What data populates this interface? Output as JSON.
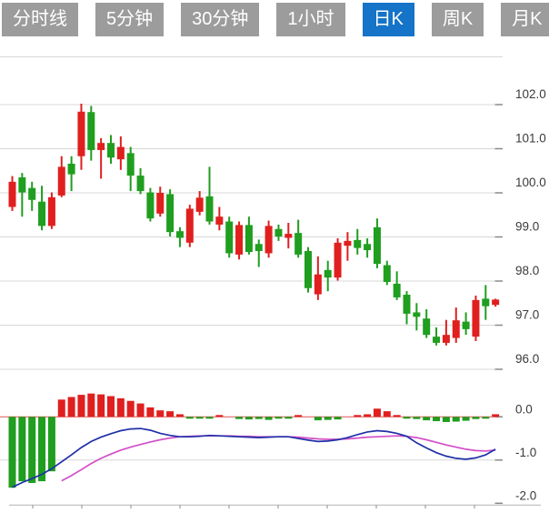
{
  "toolbar": {
    "tabs": [
      {
        "label": "分时线",
        "active": false
      },
      {
        "label": "5分钟",
        "active": false
      },
      {
        "label": "30分钟",
        "active": false
      },
      {
        "label": "1小时",
        "active": false
      },
      {
        "label": "日K",
        "active": true
      },
      {
        "label": "周K",
        "active": false
      },
      {
        "label": "月K",
        "active": false
      }
    ]
  },
  "colors": {
    "up": "#e01f1f",
    "down": "#1f9e1f",
    "tab_bg": "#9c9c9c",
    "tab_active_bg": "#1573c8",
    "tab_text": "#ffffff",
    "grid": "#d8d8d8",
    "axis_line": "#b4b4b4",
    "axis_text": "#3a3a3a",
    "tick": "#8a8a8a",
    "dif_line": "#2030a8",
    "dea_line": "#d24fc8",
    "zero_line": "#dd5555",
    "background": "#ffffff"
  },
  "chart_data": {
    "type": "candlestick",
    "title": "",
    "legend": [],
    "grid": "horizontal-only",
    "price_axis": {
      "side": "right",
      "tick_labels": [
        "102.0",
        "101.0",
        "100.0",
        "99.0",
        "98.0",
        "97.0",
        "96.0"
      ],
      "tick_values": [
        102,
        101,
        100,
        99,
        98,
        97,
        96
      ]
    },
    "macd_axis": {
      "side": "right",
      "tick_labels": [
        "0.0",
        "-1.0",
        "-2.0"
      ],
      "tick_values": [
        0,
        -1,
        -2
      ]
    },
    "candles": [
      [
        99.68,
        100.38,
        99.59,
        100.25
      ],
      [
        100.35,
        100.45,
        99.46,
        100.01
      ],
      [
        100.11,
        100.25,
        99.59,
        99.84
      ],
      [
        99.8,
        100.16,
        99.15,
        99.25
      ],
      [
        99.25,
        100.01,
        99.18,
        99.9
      ],
      [
        99.94,
        100.83,
        99.9,
        100.59
      ],
      [
        100.66,
        100.83,
        100.04,
        100.42
      ],
      [
        100.83,
        102.02,
        100.52,
        101.84
      ],
      [
        101.83,
        101.97,
        100.73,
        100.97
      ],
      [
        100.97,
        101.24,
        100.32,
        101.13
      ],
      [
        101.13,
        101.31,
        100.66,
        100.8
      ],
      [
        100.76,
        101.28,
        100.52,
        101.04
      ],
      [
        100.9,
        101.04,
        100.04,
        100.39
      ],
      [
        100.39,
        100.56,
        99.97,
        100.04
      ],
      [
        100.01,
        100.11,
        99.35,
        99.42
      ],
      [
        99.53,
        100.14,
        99.46,
        100.0
      ],
      [
        99.97,
        100.08,
        99.01,
        99.11
      ],
      [
        99.13,
        99.22,
        98.77,
        98.98
      ],
      [
        98.87,
        99.73,
        98.77,
        99.64
      ],
      [
        99.57,
        100.04,
        99.49,
        99.89
      ],
      [
        99.92,
        100.59,
        99.28,
        99.35
      ],
      [
        99.28,
        99.68,
        99.15,
        99.46
      ],
      [
        99.35,
        99.46,
        98.53,
        98.63
      ],
      [
        98.6,
        99.35,
        98.49,
        99.27
      ],
      [
        99.27,
        99.46,
        98.6,
        98.66
      ],
      [
        98.84,
        98.94,
        98.32,
        98.68
      ],
      [
        98.63,
        99.37,
        98.53,
        99.25
      ],
      [
        99.18,
        99.28,
        98.91,
        99.01
      ],
      [
        98.98,
        99.32,
        98.74,
        99.07
      ],
      [
        99.09,
        99.39,
        98.53,
        98.6
      ],
      [
        98.68,
        98.77,
        97.74,
        97.84
      ],
      [
        97.7,
        98.56,
        97.57,
        98.15
      ],
      [
        98.25,
        98.46,
        97.77,
        98.08
      ],
      [
        98.08,
        98.97,
        98.01,
        98.87
      ],
      [
        98.8,
        99.11,
        98.46,
        98.91
      ],
      [
        98.93,
        99.18,
        98.6,
        98.75
      ],
      [
        98.84,
        98.97,
        98.53,
        98.7
      ],
      [
        99.22,
        99.42,
        98.29,
        98.39
      ],
      [
        98.36,
        98.46,
        97.91,
        97.98
      ],
      [
        97.94,
        98.22,
        97.57,
        97.63
      ],
      [
        97.69,
        97.77,
        97.02,
        97.26
      ],
      [
        97.29,
        97.5,
        96.88,
        97.19
      ],
      [
        97.15,
        97.36,
        96.71,
        96.78
      ],
      [
        96.74,
        96.95,
        96.54,
        96.6
      ],
      [
        96.6,
        97.12,
        96.54,
        96.78
      ],
      [
        96.71,
        97.4,
        96.6,
        97.11
      ],
      [
        97.08,
        97.29,
        96.78,
        96.91
      ],
      [
        96.74,
        97.67,
        96.64,
        97.57
      ],
      [
        97.6,
        97.91,
        97.12,
        97.43
      ],
      [
        97.46,
        97.6,
        97.42,
        97.58
      ]
    ],
    "macd": {
      "hist": [
        -1.64,
        -1.49,
        -1.53,
        -1.49,
        -1.26,
        0.4,
        0.46,
        0.51,
        0.54,
        0.52,
        0.48,
        0.43,
        0.37,
        0.31,
        0.22,
        0.15,
        0.13,
        0.06,
        -0.04,
        -0.04,
        -0.03,
        0.01,
        0.0,
        -0.05,
        -0.06,
        -0.05,
        -0.07,
        -0.04,
        -0.04,
        0.02,
        0.0,
        -0.08,
        -0.07,
        -0.06,
        0.0,
        0.04,
        0.06,
        0.19,
        0.13,
        0.04,
        -0.03,
        -0.05,
        -0.08,
        -0.1,
        -0.12,
        -0.11,
        -0.09,
        -0.05,
        -0.03,
        0.06
      ],
      "dif": [
        -1.63,
        -1.52,
        -1.43,
        -1.33,
        -1.2,
        -1.04,
        -0.88,
        -0.71,
        -0.57,
        -0.47,
        -0.39,
        -0.32,
        -0.28,
        -0.27,
        -0.31,
        -0.38,
        -0.43,
        -0.46,
        -0.46,
        -0.45,
        -0.43,
        -0.44,
        -0.45,
        -0.46,
        -0.47,
        -0.48,
        -0.47,
        -0.46,
        -0.46,
        -0.5,
        -0.54,
        -0.57,
        -0.56,
        -0.53,
        -0.48,
        -0.41,
        -0.35,
        -0.32,
        -0.34,
        -0.38,
        -0.45,
        -0.6,
        -0.72,
        -0.83,
        -0.91,
        -0.96,
        -0.98,
        -0.95,
        -0.88,
        -0.75
      ],
      "dea": [
        null,
        null,
        null,
        null,
        null,
        -1.48,
        -1.36,
        -1.22,
        -1.08,
        -0.96,
        -0.86,
        -0.77,
        -0.7,
        -0.64,
        -0.58,
        -0.53,
        -0.49,
        -0.46,
        -0.45,
        -0.44,
        -0.44,
        -0.44,
        -0.44,
        -0.45,
        -0.45,
        -0.46,
        -0.46,
        -0.46,
        -0.46,
        -0.47,
        -0.49,
        -0.51,
        -0.52,
        -0.52,
        -0.51,
        -0.49,
        -0.47,
        -0.46,
        -0.45,
        -0.44,
        -0.45,
        -0.48,
        -0.53,
        -0.59,
        -0.65,
        -0.7,
        -0.75,
        -0.78,
        -0.79,
        -0.77
      ]
    }
  }
}
